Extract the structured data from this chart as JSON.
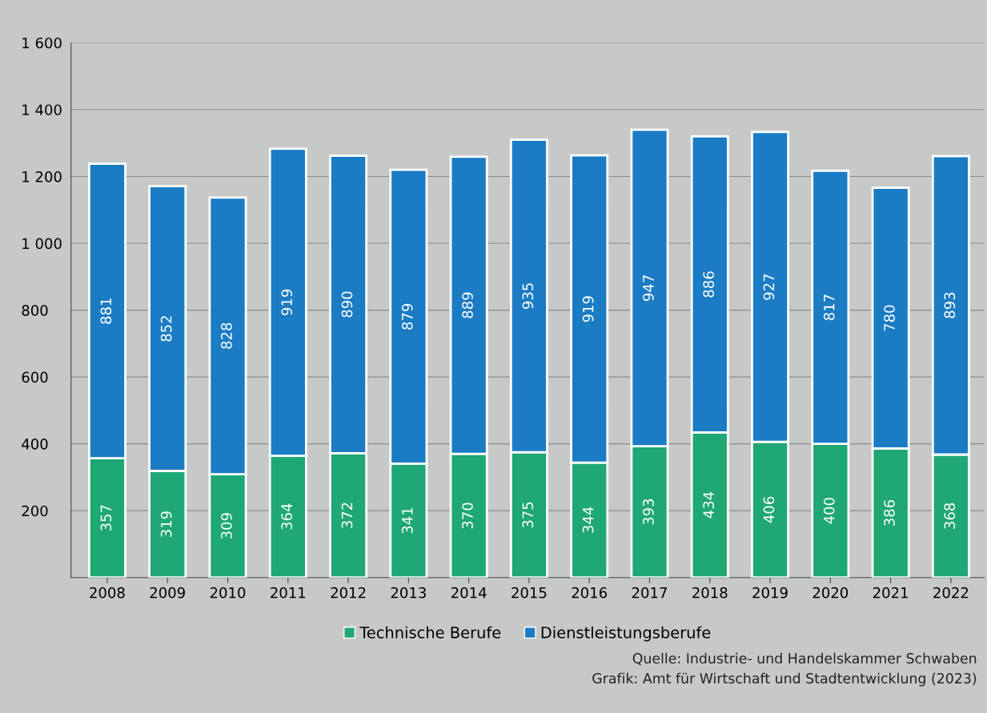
{
  "chart_data": {
    "type": "bar",
    "stacked": true,
    "categories": [
      "2008",
      "2009",
      "2010",
      "2011",
      "2012",
      "2013",
      "2014",
      "2015",
      "2016",
      "2017",
      "2018",
      "2019",
      "2020",
      "2021",
      "2022"
    ],
    "series": [
      {
        "name": "Technische Berufe",
        "color": "#1fa774",
        "values": [
          357,
          319,
          309,
          364,
          372,
          341,
          370,
          375,
          344,
          393,
          434,
          406,
          400,
          386,
          368
        ]
      },
      {
        "name": "Dienstleistungsberufe",
        "color": "#1b7cc4",
        "values": [
          881,
          852,
          828,
          919,
          890,
          879,
          889,
          935,
          919,
          947,
          886,
          927,
          817,
          780,
          893
        ]
      }
    ],
    "ylim": [
      0,
      1600
    ],
    "yticks": [
      200,
      400,
      600,
      800,
      {
        "value": 1000,
        "label": "1 000"
      },
      {
        "value": 1200,
        "label": "1 200"
      },
      {
        "value": 1400,
        "label": "1 400"
      },
      {
        "value": 1600,
        "label": "1 600"
      }
    ],
    "grid": "y",
    "legend": "bottom",
    "data_labels": true,
    "annotations": [
      "Quelle: Industrie- und Handelskammer Schwaben",
      "Grafik: Amt für Wirtschaft und Stadtentwicklung (2023)"
    ]
  }
}
